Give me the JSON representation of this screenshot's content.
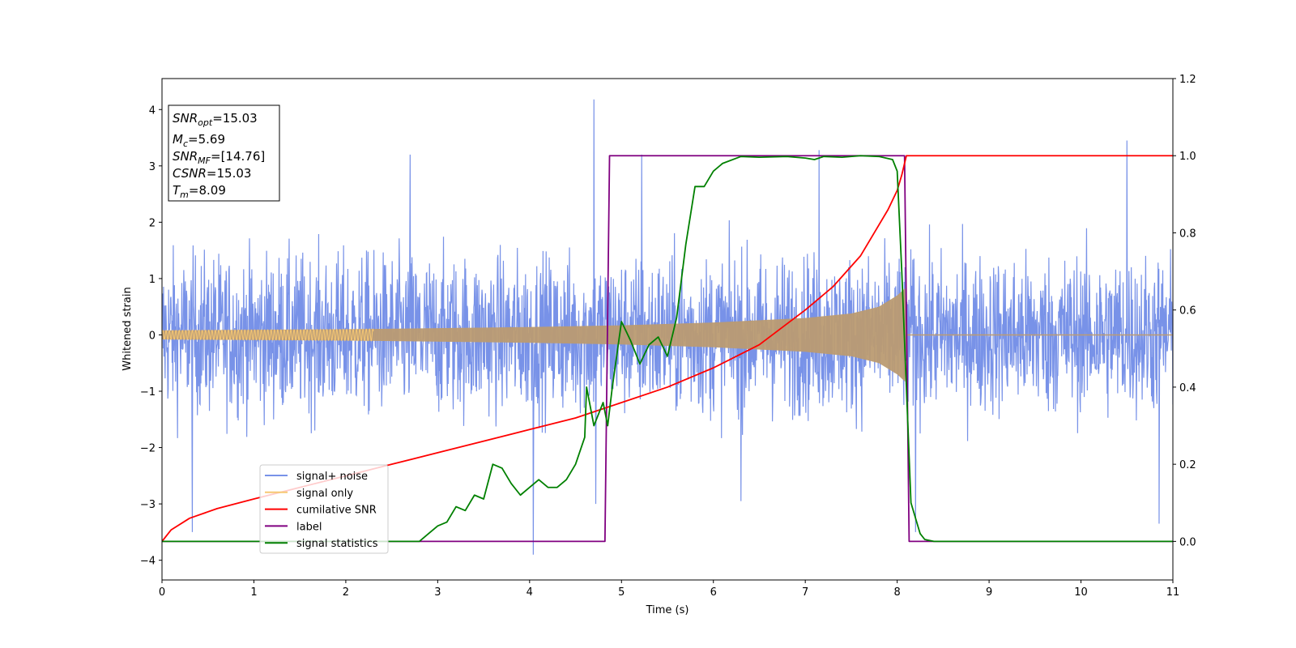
{
  "chart_data": {
    "type": "line",
    "xlabel": "Time (s)",
    "ylabel": "Whitened strain",
    "xlim": [
      0,
      11
    ],
    "ylim_left": [
      -4.35,
      4.55
    ],
    "ylim_right": [
      -0.1,
      1.2
    ],
    "x_ticks": [
      "0",
      "1",
      "2",
      "3",
      "4",
      "5",
      "6",
      "7",
      "8",
      "9",
      "10",
      "11"
    ],
    "y_left_ticks": [
      "−4",
      "−3",
      "−2",
      "−1",
      "0",
      "1",
      "2",
      "3",
      "4"
    ],
    "y_right_ticks": [
      "0.0",
      "0.2",
      "0.4",
      "0.6",
      "0.8",
      "1.0",
      "1.2"
    ],
    "grid": false,
    "legend_position": "lower-left",
    "colors": {
      "signal_noise": "#7892e8",
      "signal_only": "#f7c873",
      "signal_only_overlap": "#bb9b72",
      "cumulative_snr": "#ff0000",
      "label": "#800080",
      "signal_statistics": "#008000"
    },
    "series": [
      {
        "name": "signal+ noise",
        "axis": "left",
        "description_values": {
          "noise_band_min": -2.3,
          "noise_band_max": 2.3,
          "peak_max": 4.18,
          "peak_min": -3.9
        }
      },
      {
        "name": "signal only",
        "axis": "left",
        "envelope": {
          "x": [
            0,
            1,
            2,
            3,
            4,
            5,
            6,
            7,
            7.5,
            7.8,
            8.0,
            8.1
          ],
          "amp": [
            0.08,
            0.09,
            0.1,
            0.12,
            0.14,
            0.17,
            0.22,
            0.3,
            0.38,
            0.5,
            0.7,
            0.85
          ]
        }
      },
      {
        "name": "cumilative SNR",
        "axis": "right",
        "x": [
          0,
          0.1,
          0.3,
          0.6,
          1,
          1.5,
          2,
          2.5,
          3,
          3.5,
          4,
          4.5,
          5,
          5.5,
          6,
          6.5,
          7,
          7.3,
          7.6,
          7.8,
          7.9,
          8.0,
          8.05,
          8.1,
          11
        ],
        "y": [
          0.0,
          0.03,
          0.06,
          0.085,
          0.11,
          0.14,
          0.17,
          0.2,
          0.23,
          0.26,
          0.29,
          0.32,
          0.36,
          0.4,
          0.45,
          0.51,
          0.6,
          0.66,
          0.74,
          0.82,
          0.86,
          0.91,
          0.95,
          1.0,
          1.0
        ]
      },
      {
        "name": "label",
        "axis": "right",
        "x": [
          0,
          4.82,
          4.87,
          8.08,
          8.13,
          11
        ],
        "y": [
          0,
          0,
          1,
          1,
          0,
          0
        ]
      },
      {
        "name": "signal statistics",
        "axis": "right",
        "x": [
          0,
          2.8,
          2.9,
          3.0,
          3.1,
          3.2,
          3.3,
          3.4,
          3.5,
          3.6,
          3.7,
          3.8,
          3.9,
          4.0,
          4.1,
          4.2,
          4.3,
          4.4,
          4.5,
          4.6,
          4.62,
          4.7,
          4.8,
          4.85,
          4.9,
          5.0,
          5.1,
          5.2,
          5.3,
          5.4,
          5.5,
          5.6,
          5.7,
          5.8,
          5.9,
          6.0,
          6.1,
          6.3,
          6.5,
          6.8,
          7.0,
          7.1,
          7.2,
          7.4,
          7.6,
          7.8,
          7.95,
          8.0,
          8.05,
          8.1,
          8.15,
          8.2,
          8.25,
          8.3,
          8.4,
          11
        ],
        "y": [
          0,
          0,
          0.02,
          0.04,
          0.05,
          0.09,
          0.08,
          0.12,
          0.11,
          0.2,
          0.19,
          0.15,
          0.12,
          0.14,
          0.16,
          0.14,
          0.14,
          0.16,
          0.2,
          0.27,
          0.4,
          0.3,
          0.36,
          0.3,
          0.4,
          0.57,
          0.52,
          0.46,
          0.51,
          0.53,
          0.48,
          0.58,
          0.77,
          0.92,
          0.92,
          0.96,
          0.98,
          0.998,
          0.996,
          0.998,
          0.994,
          0.99,
          0.998,
          0.996,
          1.0,
          0.998,
          0.99,
          0.96,
          0.7,
          0.4,
          0.1,
          0.06,
          0.02,
          0.005,
          0.0,
          0.0
        ]
      }
    ],
    "annotation": {
      "lines": [
        {
          "main": "SNR",
          "sub": "opt",
          "value": "=15.03"
        },
        {
          "main": "M",
          "sub": "c",
          "value": "=5.69"
        },
        {
          "main": "SNR",
          "sub": "MF",
          "value": "=[14.76]"
        },
        {
          "main": "CSNR",
          "sub": "",
          "value": "=15.03"
        },
        {
          "main": "T",
          "sub": "m",
          "value": "=8.09"
        }
      ]
    }
  }
}
